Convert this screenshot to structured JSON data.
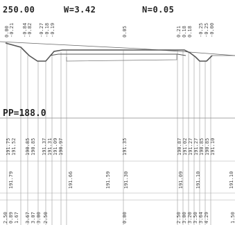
{
  "header": {
    "station": "250.00",
    "width": "W=3.42",
    "slope": "N=0.05"
  },
  "pp_label": "PP=188.0",
  "top_offsets": [
    "0.00",
    "-0.21",
    "-0.84",
    "-0.82",
    "-0.27",
    "-0.18",
    "-0.19",
    "0.05",
    "0.21",
    "0.18",
    "0.18",
    "-0.25",
    "-0.25",
    "-0.00"
  ],
  "row_elev_a": [
    "191.75",
    "191.52",
    "190.85",
    "190.85",
    "191.37",
    "191.31",
    "191.09",
    "190.97",
    "191.35",
    "190.87",
    "191.02",
    "191.27",
    "191.27",
    "190.85",
    "190.85",
    "191.10"
  ],
  "row_elev_b": [
    "191.75",
    "191.52",
    "190.85",
    "190.85",
    "191.37",
    "191.31",
    "191.09",
    "190.97",
    "190.92",
    "191.30",
    "191.02",
    "191.27",
    "191.27",
    "190.85",
    "190.85",
    "191.10"
  ],
  "row_elev_c": [
    "191.79",
    "191.66",
    "191.59",
    "191.30",
    "191.09",
    "191.10",
    "191.10"
  ],
  "row_dist": [
    "2.50",
    "0.89",
    "1.67",
    "3.67",
    "3.07",
    "3.00",
    "2.50",
    "0.00",
    "2.50",
    "3.00",
    "3.20",
    "3.50",
    "3.64",
    "4.29",
    "1.50"
  ]
}
